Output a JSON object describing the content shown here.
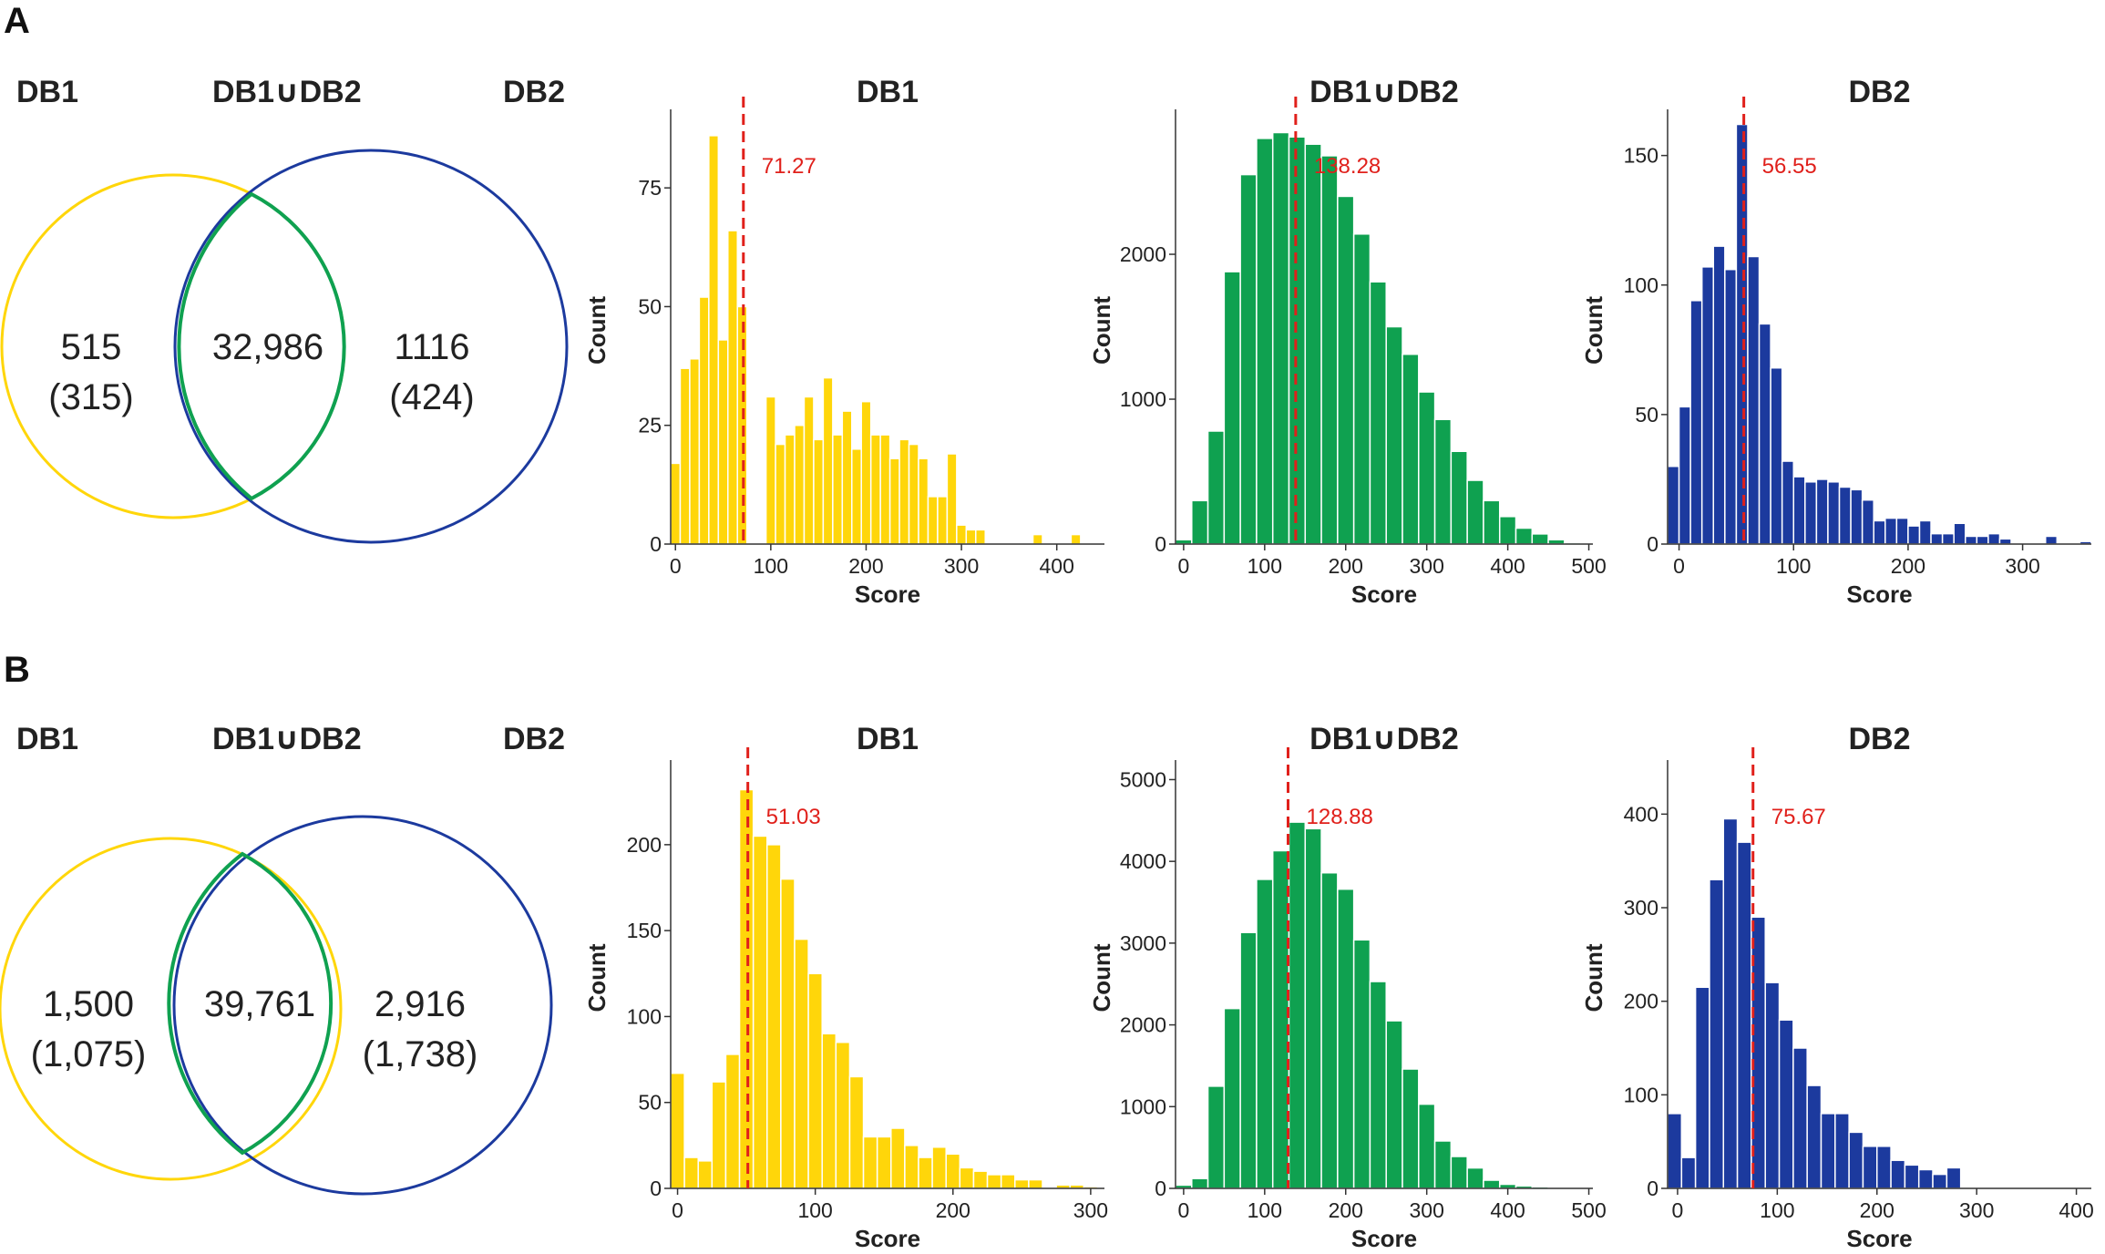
{
  "colors": {
    "db1": "#FFD60A",
    "union": "#0FA150",
    "db2": "#1C3A9E",
    "mean_line": "#E0201B"
  },
  "panels": [
    {
      "label": "A",
      "venn": {
        "left_title": "DB1",
        "middle_title": "DB1∪DB2",
        "right_title": "DB2",
        "left_count": "515",
        "left_sub": "(315)",
        "overlap_count": "32,986",
        "right_count": "1116",
        "right_sub": "(424)"
      }
    },
    {
      "label": "B",
      "venn": {
        "left_title": "DB1",
        "middle_title": "DB1∪DB2",
        "right_title": "DB2",
        "left_count": "1,500",
        "left_sub": "(1,075)",
        "overlap_count": "39,761",
        "right_count": "2,916",
        "right_sub": "(1,738)"
      }
    }
  ],
  "chart_data": [
    {
      "type": "bar",
      "panel": "A",
      "title": "DB1",
      "color": "db1",
      "xlabel": "Score",
      "ylabel": "Count",
      "xlim": [
        -5,
        450
      ],
      "ylim": [
        0,
        90
      ],
      "xticks": [
        0,
        100,
        200,
        300,
        400
      ],
      "yticks": [
        0,
        25,
        50,
        75
      ],
      "bin_start": -5,
      "bin_width": 10,
      "values": [
        17,
        37,
        39,
        52,
        86,
        43,
        66,
        50,
        0,
        0,
        31,
        21,
        23,
        25,
        31,
        22,
        35,
        23,
        28,
        20,
        30,
        23,
        23,
        18,
        22,
        21,
        18,
        10,
        10,
        19,
        4,
        3,
        3,
        0,
        0,
        0,
        0,
        0,
        2,
        0,
        0,
        0,
        2,
        0,
        0
      ],
      "mean": 71.27,
      "mean_label": "71.27"
    },
    {
      "type": "bar",
      "panel": "A",
      "title": "DB1∪DB2",
      "color": "union",
      "xlabel": "Score",
      "ylabel": "Count",
      "xlim": [
        -10,
        505
      ],
      "ylim": [
        0,
        2950
      ],
      "xticks": [
        0,
        100,
        200,
        300,
        400,
        500
      ],
      "yticks": [
        0,
        1000,
        2000
      ],
      "bin_start": -10,
      "bin_width": 20,
      "values": [
        30,
        300,
        780,
        1880,
        2550,
        2800,
        2840,
        2810,
        2760,
        2680,
        2400,
        2140,
        1810,
        1500,
        1310,
        1050,
        860,
        640,
        440,
        300,
        190,
        110,
        70,
        30,
        10,
        5
      ],
      "mean": 138.28,
      "mean_label": "138.28"
    },
    {
      "type": "bar",
      "panel": "A",
      "title": "DB2",
      "color": "db2",
      "xlabel": "Score",
      "ylabel": "Count",
      "xlim": [
        -10,
        360
      ],
      "ylim": [
        0,
        165
      ],
      "xticks": [
        0,
        100,
        200,
        300
      ],
      "yticks": [
        0,
        50,
        100,
        150
      ],
      "bin_start": -10,
      "bin_width": 10,
      "values": [
        30,
        53,
        94,
        107,
        115,
        106,
        162,
        111,
        85,
        68,
        32,
        26,
        24,
        25,
        24,
        22,
        21,
        17,
        9,
        10,
        10,
        7,
        9,
        4,
        4,
        8,
        3,
        3,
        4,
        2,
        0,
        0,
        0,
        3,
        0,
        0,
        1
      ],
      "mean": 56.55,
      "mean_label": "56.55"
    },
    {
      "type": "bar",
      "panel": "B",
      "title": "DB1",
      "color": "db1",
      "xlabel": "Score",
      "ylabel": "Count",
      "xlim": [
        -5,
        310
      ],
      "ylim": [
        0,
        245
      ],
      "xticks": [
        0,
        100,
        200,
        300
      ],
      "yticks": [
        0,
        50,
        100,
        150,
        200
      ],
      "bin_start": -5,
      "bin_width": 10,
      "values": [
        67,
        18,
        16,
        62,
        78,
        232,
        205,
        200,
        180,
        145,
        125,
        90,
        85,
        65,
        30,
        30,
        35,
        25,
        18,
        24,
        20,
        12,
        10,
        8,
        8,
        5,
        5,
        0,
        2,
        2,
        1
      ],
      "mean": 51.03,
      "mean_label": "51.03"
    },
    {
      "type": "bar",
      "panel": "B",
      "title": "DB1∪DB2",
      "color": "union",
      "xlabel": "Score",
      "ylabel": "Count",
      "xlim": [
        -10,
        505
      ],
      "ylim": [
        0,
        5150
      ],
      "xticks": [
        0,
        100,
        200,
        300,
        400,
        500
      ],
      "yticks": [
        0,
        1000,
        2000,
        3000,
        4000,
        5000
      ],
      "bin_start": -10,
      "bin_width": 20,
      "values": [
        40,
        120,
        1250,
        2200,
        3130,
        3780,
        4130,
        4480,
        4400,
        3860,
        3660,
        3040,
        2530,
        2050,
        1460,
        1030,
        580,
        390,
        250,
        100,
        50,
        30,
        20,
        10,
        5,
        0
      ],
      "mean": 128.88,
      "mean_label": "128.88"
    },
    {
      "type": "bar",
      "panel": "B",
      "title": "DB2",
      "color": "db2",
      "xlabel": "Score",
      "ylabel": "Count",
      "xlim": [
        -10,
        415
      ],
      "ylim": [
        0,
        450
      ],
      "xticks": [
        0,
        100,
        200,
        300,
        400
      ],
      "yticks": [
        0,
        100,
        200,
        300,
        400
      ],
      "bin_start": -10,
      "bin_width": 14,
      "values": [
        80,
        33,
        215,
        330,
        395,
        370,
        290,
        220,
        180,
        150,
        110,
        80,
        80,
        60,
        45,
        45,
        30,
        25,
        20,
        15,
        22,
        0
      ],
      "mean": 75.67,
      "mean_label": "75.67"
    }
  ]
}
